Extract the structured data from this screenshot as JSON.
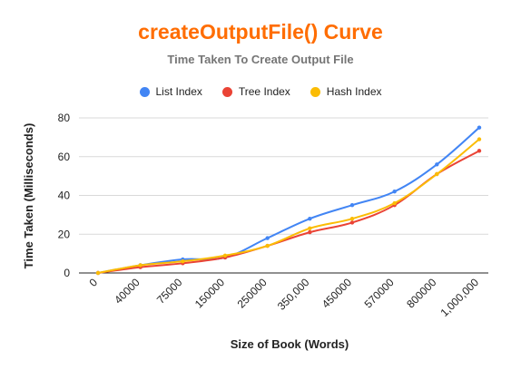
{
  "colors": {
    "title": "#ff6d01",
    "subtitle": "#757575",
    "grid": "#d9d9d9",
    "axis": "#222222"
  },
  "chart_data": {
    "type": "line",
    "title": "createOutputFile() Curve",
    "subtitle": "Time Taken To Create Output File",
    "xlabel": "Size of Book (Words)",
    "ylabel": "Time Taken (Milliseconds)",
    "categories": [
      "0",
      "40000",
      "75000",
      "150000",
      "250000",
      "350,000",
      "450000",
      "570000",
      "800000",
      "1,000,000"
    ],
    "ylim": [
      0,
      80
    ],
    "yticks": [
      0,
      20,
      40,
      60,
      80
    ],
    "grid": true,
    "legend_position": "top",
    "series": [
      {
        "name": "List Index",
        "color": "#4285f4",
        "values": [
          0,
          4,
          7,
          8,
          18,
          28,
          35,
          42,
          56,
          75
        ]
      },
      {
        "name": "Tree Index",
        "color": "#ea4335",
        "values": [
          0,
          3,
          5,
          8,
          14,
          21,
          26,
          35,
          51,
          63
        ]
      },
      {
        "name": "Hash Index",
        "color": "#fbbc04",
        "values": [
          0,
          4,
          6,
          9,
          14,
          23,
          28,
          36,
          51,
          69
        ]
      }
    ]
  }
}
